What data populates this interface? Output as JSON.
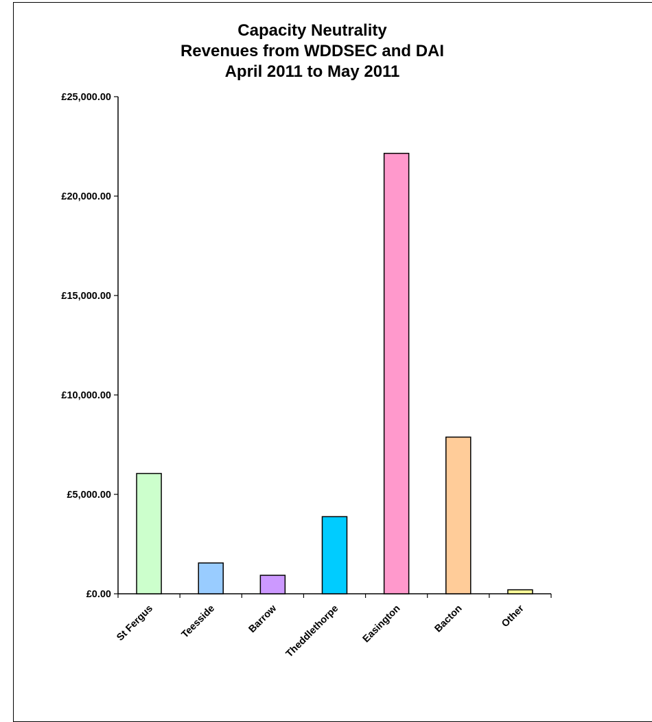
{
  "chart_data": {
    "type": "bar",
    "title_lines": [
      "Capacity Neutrality",
      "Revenues from WDDSEC and DAI",
      "April 2011 to May 2011"
    ],
    "categories": [
      "St Fergus",
      "Teesside",
      "Barrow",
      "Theddlethorpe",
      "Easington",
      "Bacton",
      "Other"
    ],
    "values": [
      6050,
      1550,
      930,
      3880,
      22150,
      7880,
      200
    ],
    "colors": [
      "#ccffcc",
      "#99ccff",
      "#cc99ff",
      "#00ccff",
      "#ff99cc",
      "#ffcc99",
      "#ffff99"
    ],
    "ylim": [
      0,
      25000
    ],
    "yticks": [
      {
        "value": 0,
        "label": "£0.00"
      },
      {
        "value": 5000,
        "label": "£5,000.00"
      },
      {
        "value": 10000,
        "label": "£10,000.00"
      },
      {
        "value": 15000,
        "label": "£15,000.00"
      },
      {
        "value": 20000,
        "label": "£20,000.00"
      },
      {
        "value": 25000,
        "label": "£25,000.00"
      }
    ],
    "xlabel": "",
    "ylabel": "",
    "grid": false,
    "legend": "none"
  }
}
